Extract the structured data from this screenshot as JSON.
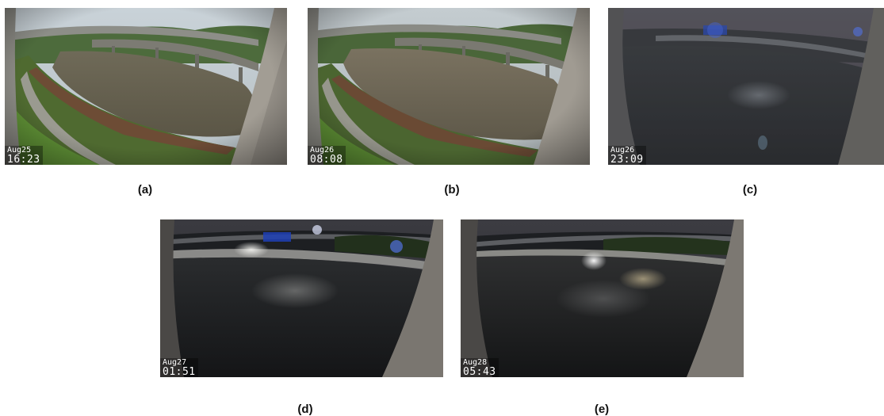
{
  "panels": [
    {
      "date": "Aug25",
      "time": "16:23",
      "caption": "(a)"
    },
    {
      "date": "Aug26",
      "time": "08:08",
      "caption": "(b)"
    },
    {
      "date": "Aug26",
      "time": "23:09",
      "caption": "(c)"
    },
    {
      "date": "Aug27",
      "time": "01:51",
      "caption": "(d)"
    },
    {
      "date": "Aug28",
      "time": "05:43",
      "caption": "(e)"
    }
  ]
}
